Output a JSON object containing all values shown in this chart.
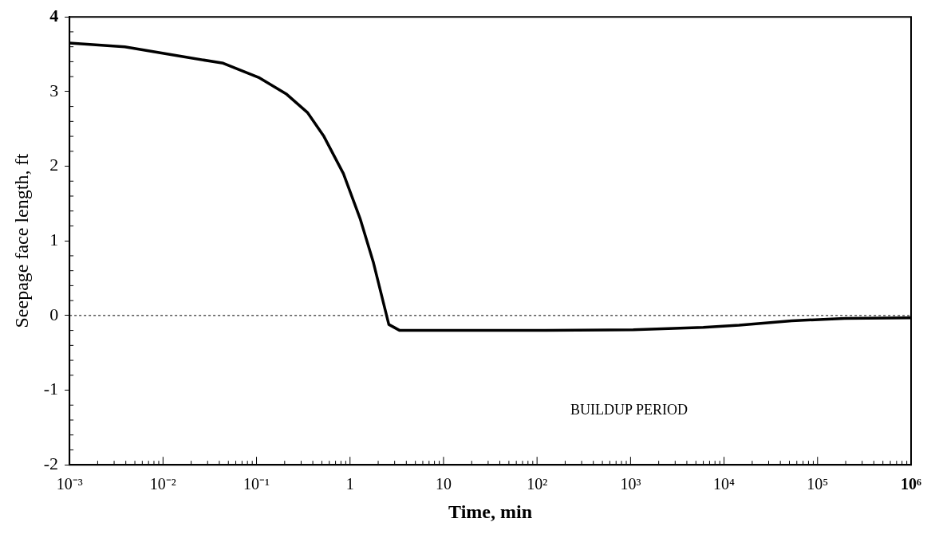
{
  "chart_data": {
    "type": "line",
    "xlabel": "Time, min",
    "ylabel": "Seepage face length, ft",
    "log": "x",
    "xlim": [
      0.001,
      1000000
    ],
    "xticks": [
      {
        "value": 0.001,
        "label": "10⁻³"
      },
      {
        "value": 0.01,
        "label": "10⁻²"
      },
      {
        "value": 0.1,
        "label": "10⁻¹"
      },
      1,
      10,
      {
        "value": 100,
        "label": "10²"
      },
      {
        "value": 1000,
        "label": "10³"
      },
      {
        "value": 10000,
        "label": "10⁴"
      },
      {
        "value": 100000,
        "label": "10⁵"
      },
      {
        "value": 1000000,
        "label": "10⁶"
      }
    ],
    "ylim": [
      -2,
      4
    ],
    "yticks": [
      -2,
      -1,
      0,
      1,
      2,
      3,
      4
    ],
    "grid": false,
    "legend": false,
    "marker": "none",
    "line_style": "solid",
    "series": [
      {
        "color": "#000000",
        "x": [
          0.001,
          0.0039,
          0.0158,
          0.044,
          0.105,
          0.207,
          0.35,
          0.52,
          0.85,
          1.28,
          1.77,
          2.6,
          3.4,
          14,
          123,
          1070,
          6000,
          14500,
          53000,
          195000,
          1000000
        ],
        "values": [
          3.65,
          3.6,
          3.47,
          3.38,
          3.19,
          2.97,
          2.72,
          2.41,
          1.9,
          1.3,
          0.72,
          -0.12,
          -0.2,
          -0.2,
          -0.2,
          -0.19,
          -0.16,
          -0.13,
          -0.07,
          -0.04,
          -0.03
        ]
      }
    ],
    "ref_lines": [
      {
        "axis": "y",
        "value": 0,
        "color": "#000000",
        "line_style": "dotted"
      }
    ],
    "annotations": [
      "BUILDUP PERIOD"
    ]
  }
}
